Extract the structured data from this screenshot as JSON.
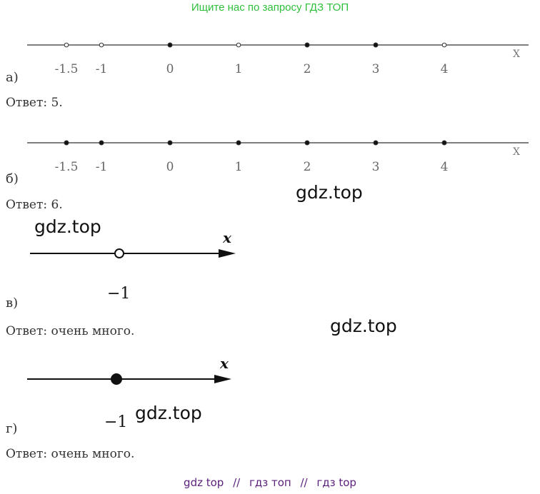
{
  "header": {
    "link_text": "Ищите нас по запросу ГДЗ ТОП",
    "color": "#2fbf3a"
  },
  "part_a": {
    "label": "а)",
    "axis_name": "X",
    "ticks": [
      "-1.5",
      "-1",
      "0",
      "1",
      "2",
      "3",
      "4"
    ],
    "points": [
      {
        "x": "-1.5",
        "type": "open"
      },
      {
        "x": "-1",
        "type": "open"
      },
      {
        "x": "0",
        "type": "filled"
      },
      {
        "x": "1",
        "type": "open"
      },
      {
        "x": "2",
        "type": "filled"
      },
      {
        "x": "3",
        "type": "filled"
      },
      {
        "x": "4",
        "type": "open"
      }
    ],
    "answer": "Ответ: 5."
  },
  "part_b": {
    "label": "б)",
    "axis_name": "X",
    "ticks": [
      "-1.5",
      "-1",
      "0",
      "1",
      "2",
      "3",
      "4"
    ],
    "points": [
      {
        "x": "-1.5",
        "type": "filled"
      },
      {
        "x": "-1",
        "type": "filled"
      },
      {
        "x": "0",
        "type": "filled"
      },
      {
        "x": "1",
        "type": "filled"
      },
      {
        "x": "2",
        "type": "filled"
      },
      {
        "x": "3",
        "type": "filled"
      },
      {
        "x": "4",
        "type": "filled"
      }
    ],
    "answer": "Ответ: 6."
  },
  "part_v": {
    "label": "в)",
    "axis_name": "x",
    "point_label": "−1",
    "point_type": "open",
    "answer": "Ответ: очень много."
  },
  "part_g": {
    "label": "г)",
    "axis_name": "x",
    "point_label": "−1",
    "point_type": "filled",
    "answer": "Ответ: очень много."
  },
  "watermarks": [
    "gdz.top",
    "gdz.top",
    "gdz.top",
    "gdz.top"
  ],
  "footer": {
    "links": [
      "gdz top",
      "гдз топ",
      "гдз top"
    ],
    "separator": "//"
  }
}
